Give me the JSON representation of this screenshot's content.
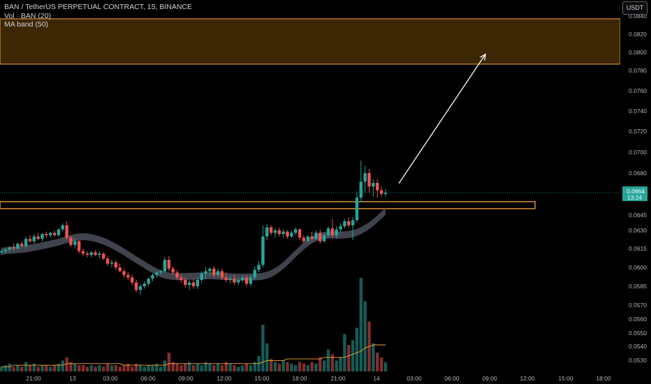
{
  "legend": {
    "symbol": "BAN / TetherUS PERPETUAL CONTRACT, 15, BINANCE",
    "vol": "Vol · BAN (20)",
    "ma": "MA band (50)"
  },
  "currency_button": "USDT",
  "colors": {
    "up": "#26a69a",
    "down": "#ef5350",
    "zone_border": "#f7a538",
    "zone_fill": "#3d2604",
    "ma_band": "#4a4f5a"
  },
  "chart_data": {
    "type": "candlestick",
    "title": "BAN / TetherUS PERPETUAL CONTRACT, 15, BINANCE",
    "ylim": [
      0.0519,
      0.0846
    ],
    "y_ticks": [
      "0.0840",
      "0.0820",
      "0.0800",
      "0.0780",
      "0.0760",
      "0.0740",
      "0.0720",
      "0.0700",
      "0.0680",
      "0.0660",
      "0.0645",
      "0.0630",
      "0.0615",
      "0.0600",
      "0.0585",
      "0.0570",
      "0.0560",
      "0.0550",
      "0.0540",
      "0.0530"
    ],
    "x_ticks": [
      "21:00",
      "13",
      "03:00",
      "06:00",
      "09:00",
      "12:00",
      "15:00",
      "18:00",
      "21:00",
      "14",
      "03:00",
      "06:00",
      "09:00",
      "12:00",
      "15:00",
      "18:00"
    ],
    "last_price": "0.0664",
    "countdown": "13:24",
    "resistance_zone": [
      0.0787,
      0.0837
    ],
    "support_zone": [
      0.06535,
      0.06565
    ],
    "projection_arrow": {
      "from": 0.0663,
      "to": 0.0798
    },
    "candles": [
      {
        "t": 0,
        "o": 0.0612,
        "h": 0.0614,
        "l": 0.061,
        "c": 0.0613
      },
      {
        "t": 1,
        "o": 0.0613,
        "h": 0.0615,
        "l": 0.0611,
        "c": 0.0614
      },
      {
        "t": 2,
        "o": 0.0614,
        "h": 0.0617,
        "l": 0.0612,
        "c": 0.0616
      },
      {
        "t": 3,
        "o": 0.0616,
        "h": 0.0619,
        "l": 0.0613,
        "c": 0.0615
      },
      {
        "t": 4,
        "o": 0.0615,
        "h": 0.062,
        "l": 0.0614,
        "c": 0.0619
      },
      {
        "t": 5,
        "o": 0.0619,
        "h": 0.0621,
        "l": 0.0616,
        "c": 0.0617
      },
      {
        "t": 6,
        "o": 0.0617,
        "h": 0.0625,
        "l": 0.0615,
        "c": 0.0623
      },
      {
        "t": 7,
        "o": 0.0623,
        "h": 0.0626,
        "l": 0.062,
        "c": 0.0621
      },
      {
        "t": 8,
        "o": 0.0621,
        "h": 0.0627,
        "l": 0.0619,
        "c": 0.0625
      },
      {
        "t": 9,
        "o": 0.0625,
        "h": 0.0628,
        "l": 0.0622,
        "c": 0.0623
      },
      {
        "t": 10,
        "o": 0.0623,
        "h": 0.0628,
        "l": 0.0621,
        "c": 0.0627
      },
      {
        "t": 11,
        "o": 0.0627,
        "h": 0.0629,
        "l": 0.0624,
        "c": 0.0626
      },
      {
        "t": 12,
        "o": 0.0626,
        "h": 0.0629,
        "l": 0.0624,
        "c": 0.0628
      },
      {
        "t": 13,
        "o": 0.0628,
        "h": 0.063,
        "l": 0.0625,
        "c": 0.0626
      },
      {
        "t": 14,
        "o": 0.0626,
        "h": 0.0632,
        "l": 0.0625,
        "c": 0.0631
      },
      {
        "t": 15,
        "o": 0.0631,
        "h": 0.0637,
        "l": 0.0629,
        "c": 0.0635
      },
      {
        "t": 16,
        "o": 0.0635,
        "h": 0.0639,
        "l": 0.0622,
        "c": 0.0624
      },
      {
        "t": 17,
        "o": 0.0624,
        "h": 0.0626,
        "l": 0.0616,
        "c": 0.0618
      },
      {
        "t": 18,
        "o": 0.0618,
        "h": 0.0623,
        "l": 0.0615,
        "c": 0.0621
      },
      {
        "t": 19,
        "o": 0.0621,
        "h": 0.0622,
        "l": 0.0611,
        "c": 0.0613
      },
      {
        "t": 20,
        "o": 0.0613,
        "h": 0.0615,
        "l": 0.0609,
        "c": 0.0611
      },
      {
        "t": 21,
        "o": 0.0611,
        "h": 0.0613,
        "l": 0.0608,
        "c": 0.061
      },
      {
        "t": 22,
        "o": 0.061,
        "h": 0.0613,
        "l": 0.0608,
        "c": 0.0612
      },
      {
        "t": 23,
        "o": 0.0612,
        "h": 0.0614,
        "l": 0.0609,
        "c": 0.061
      },
      {
        "t": 24,
        "o": 0.061,
        "h": 0.0613,
        "l": 0.0607,
        "c": 0.0611
      },
      {
        "t": 25,
        "o": 0.0611,
        "h": 0.0612,
        "l": 0.0606,
        "c": 0.0607
      },
      {
        "t": 26,
        "o": 0.0607,
        "h": 0.0609,
        "l": 0.0601,
        "c": 0.0603
      },
      {
        "t": 27,
        "o": 0.0603,
        "h": 0.0606,
        "l": 0.06,
        "c": 0.0604
      },
      {
        "t": 28,
        "o": 0.0604,
        "h": 0.0606,
        "l": 0.0598,
        "c": 0.06
      },
      {
        "t": 29,
        "o": 0.06,
        "h": 0.0603,
        "l": 0.0596,
        "c": 0.0597
      },
      {
        "t": 30,
        "o": 0.0597,
        "h": 0.0599,
        "l": 0.0592,
        "c": 0.0594
      },
      {
        "t": 31,
        "o": 0.0594,
        "h": 0.0596,
        "l": 0.059,
        "c": 0.0592
      },
      {
        "t": 32,
        "o": 0.0592,
        "h": 0.0594,
        "l": 0.0586,
        "c": 0.0588
      },
      {
        "t": 33,
        "o": 0.0588,
        "h": 0.059,
        "l": 0.058,
        "c": 0.0582
      },
      {
        "t": 34,
        "o": 0.0582,
        "h": 0.0587,
        "l": 0.0578,
        "c": 0.0585
      },
      {
        "t": 35,
        "o": 0.0585,
        "h": 0.0589,
        "l": 0.0583,
        "c": 0.0587
      },
      {
        "t": 36,
        "o": 0.0587,
        "h": 0.0592,
        "l": 0.0585,
        "c": 0.0591
      },
      {
        "t": 37,
        "o": 0.0591,
        "h": 0.0595,
        "l": 0.0589,
        "c": 0.0594
      },
      {
        "t": 38,
        "o": 0.0594,
        "h": 0.0597,
        "l": 0.0592,
        "c": 0.0596
      },
      {
        "t": 39,
        "o": 0.0596,
        "h": 0.0598,
        "l": 0.0594,
        "c": 0.0597
      },
      {
        "t": 40,
        "o": 0.0597,
        "h": 0.0608,
        "l": 0.0596,
        "c": 0.0606
      },
      {
        "t": 41,
        "o": 0.0606,
        "h": 0.0609,
        "l": 0.0597,
        "c": 0.0599
      },
      {
        "t": 42,
        "o": 0.0599,
        "h": 0.0601,
        "l": 0.0594,
        "c": 0.0596
      },
      {
        "t": 43,
        "o": 0.0596,
        "h": 0.0598,
        "l": 0.059,
        "c": 0.0592
      },
      {
        "t": 44,
        "o": 0.0592,
        "h": 0.0595,
        "l": 0.0588,
        "c": 0.059
      },
      {
        "t": 45,
        "o": 0.059,
        "h": 0.0592,
        "l": 0.0584,
        "c": 0.0586
      },
      {
        "t": 46,
        "o": 0.0586,
        "h": 0.059,
        "l": 0.0582,
        "c": 0.0588
      },
      {
        "t": 47,
        "o": 0.0588,
        "h": 0.0591,
        "l": 0.0583,
        "c": 0.0585
      },
      {
        "t": 48,
        "o": 0.0585,
        "h": 0.0592,
        "l": 0.0583,
        "c": 0.059
      },
      {
        "t": 49,
        "o": 0.059,
        "h": 0.0597,
        "l": 0.0588,
        "c": 0.0595
      },
      {
        "t": 50,
        "o": 0.0595,
        "h": 0.06,
        "l": 0.0591,
        "c": 0.0597
      },
      {
        "t": 51,
        "o": 0.0597,
        "h": 0.06,
        "l": 0.0593,
        "c": 0.0599
      },
      {
        "t": 52,
        "o": 0.0599,
        "h": 0.0601,
        "l": 0.0592,
        "c": 0.0594
      },
      {
        "t": 53,
        "o": 0.0594,
        "h": 0.0599,
        "l": 0.0592,
        "c": 0.0597
      },
      {
        "t": 54,
        "o": 0.0597,
        "h": 0.0599,
        "l": 0.059,
        "c": 0.0592
      },
      {
        "t": 55,
        "o": 0.0592,
        "h": 0.0596,
        "l": 0.0588,
        "c": 0.059
      },
      {
        "t": 56,
        "o": 0.059,
        "h": 0.0593,
        "l": 0.0587,
        "c": 0.0591
      },
      {
        "t": 57,
        "o": 0.0591,
        "h": 0.0594,
        "l": 0.0586,
        "c": 0.0588
      },
      {
        "t": 58,
        "o": 0.0588,
        "h": 0.0592,
        "l": 0.0586,
        "c": 0.059
      },
      {
        "t": 59,
        "o": 0.059,
        "h": 0.0594,
        "l": 0.0588,
        "c": 0.0592
      },
      {
        "t": 60,
        "o": 0.0592,
        "h": 0.0594,
        "l": 0.0585,
        "c": 0.0587
      },
      {
        "t": 61,
        "o": 0.0587,
        "h": 0.0594,
        "l": 0.0585,
        "c": 0.0592
      },
      {
        "t": 62,
        "o": 0.0592,
        "h": 0.0601,
        "l": 0.059,
        "c": 0.0598
      },
      {
        "t": 63,
        "o": 0.0598,
        "h": 0.0605,
        "l": 0.0596,
        "c": 0.0602
      },
      {
        "t": 64,
        "o": 0.0602,
        "h": 0.0635,
        "l": 0.06,
        "c": 0.0625
      },
      {
        "t": 65,
        "o": 0.0625,
        "h": 0.0636,
        "l": 0.0622,
        "c": 0.0633
      },
      {
        "t": 66,
        "o": 0.0633,
        "h": 0.0635,
        "l": 0.0626,
        "c": 0.0628
      },
      {
        "t": 67,
        "o": 0.0628,
        "h": 0.0632,
        "l": 0.0624,
        "c": 0.063
      },
      {
        "t": 68,
        "o": 0.063,
        "h": 0.0633,
        "l": 0.0625,
        "c": 0.0627
      },
      {
        "t": 69,
        "o": 0.0627,
        "h": 0.0631,
        "l": 0.0624,
        "c": 0.0629
      },
      {
        "t": 70,
        "o": 0.0629,
        "h": 0.063,
        "l": 0.0623,
        "c": 0.0625
      },
      {
        "t": 71,
        "o": 0.0625,
        "h": 0.063,
        "l": 0.0624,
        "c": 0.0628
      },
      {
        "t": 72,
        "o": 0.0628,
        "h": 0.0633,
        "l": 0.0626,
        "c": 0.0631
      },
      {
        "t": 73,
        "o": 0.0631,
        "h": 0.0632,
        "l": 0.0622,
        "c": 0.0624
      },
      {
        "t": 74,
        "o": 0.0624,
        "h": 0.0626,
        "l": 0.0619,
        "c": 0.0621
      },
      {
        "t": 75,
        "o": 0.0621,
        "h": 0.0626,
        "l": 0.062,
        "c": 0.0625
      },
      {
        "t": 76,
        "o": 0.0625,
        "h": 0.0629,
        "l": 0.0621,
        "c": 0.0623
      },
      {
        "t": 77,
        "o": 0.0623,
        "h": 0.063,
        "l": 0.0622,
        "c": 0.0628
      },
      {
        "t": 78,
        "o": 0.0628,
        "h": 0.0631,
        "l": 0.0619,
        "c": 0.0621
      },
      {
        "t": 79,
        "o": 0.0621,
        "h": 0.0628,
        "l": 0.062,
        "c": 0.0626
      },
      {
        "t": 80,
        "o": 0.0626,
        "h": 0.0634,
        "l": 0.0624,
        "c": 0.0632
      },
      {
        "t": 81,
        "o": 0.0632,
        "h": 0.0641,
        "l": 0.0624,
        "c": 0.0626
      },
      {
        "t": 82,
        "o": 0.0626,
        "h": 0.0634,
        "l": 0.0623,
        "c": 0.0631
      },
      {
        "t": 83,
        "o": 0.0631,
        "h": 0.0637,
        "l": 0.0628,
        "c": 0.0634
      },
      {
        "t": 84,
        "o": 0.0634,
        "h": 0.0641,
        "l": 0.0632,
        "c": 0.0639
      },
      {
        "t": 85,
        "o": 0.0639,
        "h": 0.0643,
        "l": 0.0633,
        "c": 0.0635
      },
      {
        "t": 86,
        "o": 0.0635,
        "h": 0.0643,
        "l": 0.0622,
        "c": 0.064
      },
      {
        "t": 87,
        "o": 0.064,
        "h": 0.0665,
        "l": 0.0638,
        "c": 0.066
      },
      {
        "t": 88,
        "o": 0.066,
        "h": 0.0692,
        "l": 0.0656,
        "c": 0.0673
      },
      {
        "t": 89,
        "o": 0.0673,
        "h": 0.0687,
        "l": 0.0664,
        "c": 0.068
      },
      {
        "t": 90,
        "o": 0.068,
        "h": 0.0684,
        "l": 0.0664,
        "c": 0.0669
      },
      {
        "t": 91,
        "o": 0.0669,
        "h": 0.0675,
        "l": 0.0661,
        "c": 0.0672
      },
      {
        "t": 92,
        "o": 0.0672,
        "h": 0.0675,
        "l": 0.066,
        "c": 0.0666
      },
      {
        "t": 93,
        "o": 0.0666,
        "h": 0.0669,
        "l": 0.0661,
        "c": 0.0663
      },
      {
        "t": 94,
        "o": 0.0663,
        "h": 0.0667,
        "l": 0.0661,
        "c": 0.0664
      }
    ],
    "volume": [
      3,
      4,
      5,
      3,
      4,
      3,
      6,
      4,
      5,
      3,
      4,
      4,
      3,
      4,
      5,
      7,
      9,
      6,
      5,
      4,
      4,
      3,
      4,
      3,
      4,
      3,
      5,
      4,
      4,
      3,
      4,
      5,
      3,
      5,
      4,
      3,
      4,
      4,
      5,
      3,
      7,
      12,
      6,
      5,
      4,
      5,
      6,
      4,
      5,
      4,
      6,
      5,
      4,
      5,
      4,
      6,
      5,
      4,
      3,
      4,
      5,
      4,
      6,
      10,
      30,
      18,
      8,
      6,
      5,
      7,
      6,
      5,
      4,
      6,
      5,
      4,
      6,
      5,
      9,
      7,
      14,
      11,
      7,
      9,
      24,
      17,
      20,
      28,
      60,
      45,
      32,
      18,
      12,
      9,
      6
    ],
    "volume_ma": [
      3,
      3,
      3,
      4,
      4,
      4,
      4,
      4,
      4,
      4,
      4,
      4,
      4,
      4,
      4,
      4,
      5,
      5,
      5,
      5,
      5,
      5,
      5,
      5,
      5,
      5,
      5,
      5,
      5,
      5,
      4,
      4,
      4,
      4,
      4,
      4,
      4,
      4,
      4,
      4,
      4,
      5,
      5,
      5,
      5,
      5,
      5,
      5,
      5,
      5,
      5,
      5,
      5,
      5,
      5,
      5,
      5,
      5,
      5,
      5,
      5,
      5,
      5,
      5,
      6,
      7,
      7,
      7,
      7,
      7,
      8,
      8,
      8,
      8,
      8,
      8,
      8,
      8,
      8,
      9,
      9,
      9,
      9,
      9,
      9,
      10,
      11,
      12,
      13,
      15,
      16,
      17,
      17,
      17,
      17
    ]
  }
}
